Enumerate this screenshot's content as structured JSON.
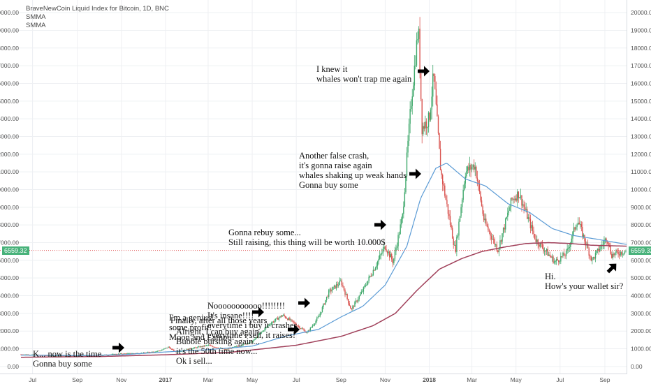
{
  "chart_header": {
    "title": "BraveNewCoin Liquid Index for Bitcoin, 1D, BNC",
    "indicators": [
      "SMMA",
      "SMMA"
    ]
  },
  "colors": {
    "up": "#3fa86b",
    "down": "#d9534f",
    "smma_fast": "#5b9bd5",
    "smma_slow": "#a0405a",
    "price_line": "#e05555",
    "price_tag": "#48b27a",
    "grid": "#eef0f3"
  },
  "last_price_label": "6559.32",
  "annotations": [
    {
      "text": [
        "K... now is the time",
        "Gonna buy some"
      ],
      "arrow": "right"
    },
    {
      "text": [
        "Alright, I can buy again",
        "Bubble bursting again...",
        "it's the 50th time now...",
        "Ok i sell..."
      ],
      "arrow": "none"
    },
    {
      "text": [
        "I'm a genius!",
        "some profit!",
        "Moon and Lambo!"
      ],
      "arrow": "none"
    },
    {
      "text": [
        "Finally, after all those years"
      ],
      "arrow": "none"
    },
    {
      "text": [
        "Nooooooooooo!!!!!!!!",
        "It's insane!!!!",
        "everytime i buy it crashes",
        "everytime i sell, it raises!"
      ],
      "arrow": "right"
    },
    {
      "text": [
        "Gonna rebuy some...",
        "Still raising, this thing will be worth 10.000$"
      ],
      "arrow": "right"
    },
    {
      "text": [
        "Another false crash,",
        "it's gonna raise again",
        "whales shaking up weak hands",
        "Gonna buy some"
      ],
      "arrow": "right"
    },
    {
      "text": [
        "I knew it",
        "whales won't trap me again"
      ],
      "arrow": "right"
    },
    {
      "text": [
        "Hi.",
        "How's your wallet sir?"
      ],
      "arrow": "up-right"
    }
  ],
  "chart_data": {
    "type": "candlestick",
    "title": "BraveNewCoin Liquid Index for Bitcoin, 1D, BNC",
    "x_tick_labels": [
      "Jul",
      "Sep",
      "Nov",
      "2017",
      "Mar",
      "May",
      "Jul",
      "Sep",
      "Nov",
      "2018",
      "Mar",
      "May",
      "Jul",
      "Sep"
    ],
    "y_tick_labels": [
      "0.00",
      "1000.00",
      "2000.00",
      "3000.00",
      "4000.00",
      "5000.00",
      "6000.00",
      "7000.00",
      "8000.00",
      "9000.00",
      "10000.00",
      "11000.00",
      "12000.00",
      "13000.00",
      "14000.00",
      "15000.00",
      "16000.00",
      "17000.00",
      "18000.00",
      "19000.00",
      "20000.00"
    ],
    "ylim": [
      -400,
      20400
    ],
    "x_range": [
      "2016-06-15",
      "2018-10-01"
    ],
    "price_points": [
      [
        "2016-06-15",
        680
      ],
      [
        "2016-07-01",
        660
      ],
      [
        "2016-08-01",
        600
      ],
      [
        "2016-09-01",
        610
      ],
      [
        "2016-10-01",
        630
      ],
      [
        "2016-11-01",
        720
      ],
      [
        "2016-12-01",
        760
      ],
      [
        "2016-12-25",
        900
      ],
      [
        "2017-01-05",
        1100
      ],
      [
        "2017-01-15",
        820
      ],
      [
        "2017-02-01",
        980
      ],
      [
        "2017-03-01",
        1200
      ],
      [
        "2017-03-25",
        950
      ],
      [
        "2017-04-15",
        1200
      ],
      [
        "2017-05-01",
        1400
      ],
      [
        "2017-05-25",
        2400
      ],
      [
        "2017-06-12",
        2900
      ],
      [
        "2017-06-28",
        2450
      ],
      [
        "2017-07-16",
        1900
      ],
      [
        "2017-08-01",
        2800
      ],
      [
        "2017-08-15",
        4200
      ],
      [
        "2017-09-01",
        4800
      ],
      [
        "2017-09-15",
        3200
      ],
      [
        "2017-10-01",
        4300
      ],
      [
        "2017-10-20",
        5800
      ],
      [
        "2017-11-01",
        6800
      ],
      [
        "2017-11-12",
        5900
      ],
      [
        "2017-11-25",
        8500
      ],
      [
        "2017-12-07",
        15000
      ],
      [
        "2017-12-17",
        19200
      ],
      [
        "2017-12-22",
        13500
      ],
      [
        "2018-01-01",
        14000
      ],
      [
        "2018-01-07",
        16500
      ],
      [
        "2018-01-17",
        11000
      ],
      [
        "2018-02-06",
        6500
      ],
      [
        "2018-02-20",
        11000
      ],
      [
        "2018-03-05",
        11400
      ],
      [
        "2018-03-18",
        8200
      ],
      [
        "2018-04-06",
        6600
      ],
      [
        "2018-04-25",
        9400
      ],
      [
        "2018-05-05",
        9800
      ],
      [
        "2018-05-28",
        7200
      ],
      [
        "2018-06-24",
        5900
      ],
      [
        "2018-07-10",
        6400
      ],
      [
        "2018-07-25",
        8300
      ],
      [
        "2018-08-14",
        6000
      ],
      [
        "2018-09-04",
        7300
      ],
      [
        "2018-09-10",
        6300
      ],
      [
        "2018-10-01",
        6560
      ]
    ],
    "series": [
      {
        "name": "SMMA",
        "points": [
          [
            "2016-06-15",
            640
          ],
          [
            "2016-09-01",
            620
          ],
          [
            "2016-11-01",
            660
          ],
          [
            "2017-01-01",
            820
          ],
          [
            "2017-03-01",
            950
          ],
          [
            "2017-05-01",
            1150
          ],
          [
            "2017-06-15",
            1700
          ],
          [
            "2017-08-01",
            2100
          ],
          [
            "2017-09-01",
            2800
          ],
          [
            "2017-10-01",
            3400
          ],
          [
            "2017-11-01",
            4600
          ],
          [
            "2017-12-01",
            6800
          ],
          [
            "2017-12-20",
            9500
          ],
          [
            "2018-01-10",
            11200
          ],
          [
            "2018-01-25",
            11500
          ],
          [
            "2018-02-20",
            10600
          ],
          [
            "2018-03-20",
            10200
          ],
          [
            "2018-04-20",
            9200
          ],
          [
            "2018-05-20",
            8700
          ],
          [
            "2018-06-20",
            7800
          ],
          [
            "2018-07-20",
            7400
          ],
          [
            "2018-08-20",
            7200
          ],
          [
            "2018-10-01",
            6900
          ]
        ]
      },
      {
        "name": "SMMA",
        "points": [
          [
            "2016-06-15",
            520
          ],
          [
            "2016-10-01",
            560
          ],
          [
            "2017-01-01",
            660
          ],
          [
            "2017-04-01",
            800
          ],
          [
            "2017-07-01",
            1200
          ],
          [
            "2017-09-01",
            1700
          ],
          [
            "2017-10-15",
            2300
          ],
          [
            "2017-11-15",
            3000
          ],
          [
            "2017-12-15",
            4300
          ],
          [
            "2018-01-15",
            5500
          ],
          [
            "2018-02-15",
            6100
          ],
          [
            "2018-03-15",
            6500
          ],
          [
            "2018-04-15",
            6750
          ],
          [
            "2018-05-15",
            6950
          ],
          [
            "2018-06-15",
            7000
          ],
          [
            "2018-07-15",
            6950
          ],
          [
            "2018-08-15",
            6850
          ],
          [
            "2018-10-01",
            6800
          ]
        ]
      }
    ],
    "last_price": 6559.32
  }
}
